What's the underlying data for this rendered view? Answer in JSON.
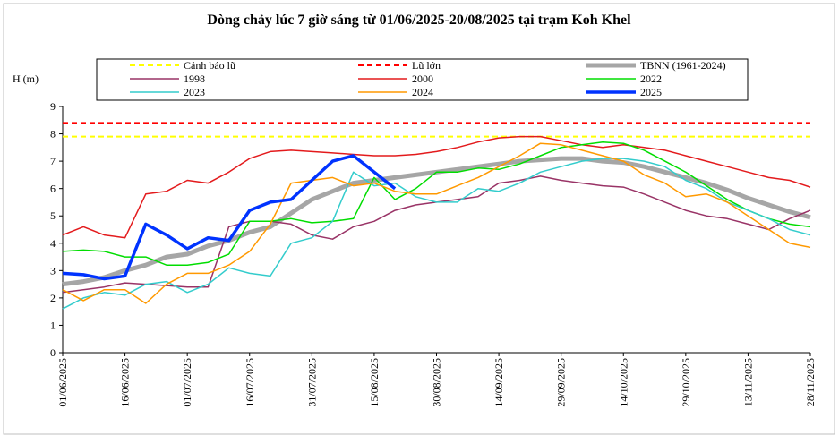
{
  "chart_data": {
    "type": "line",
    "title": "Dòng chảy lúc 7 giờ sáng từ 01/06/2025-20/08/2025 tại trạm Koh Khel",
    "y_label": "H (m)",
    "x": [
      "01/06/2025",
      "06/06/2025",
      "11/06/2025",
      "16/06/2025",
      "21/06/2025",
      "26/06/2025",
      "01/07/2025",
      "06/07/2025",
      "11/07/2025",
      "16/07/2025",
      "21/07/2025",
      "26/07/2025",
      "31/07/2025",
      "05/08/2025",
      "10/08/2025",
      "15/08/2025",
      "20/08/2025",
      "25/08/2025",
      "30/08/2025",
      "04/09/2025",
      "09/09/2025",
      "14/09/2025",
      "19/09/2025",
      "24/09/2025",
      "29/09/2025",
      "04/10/2025",
      "09/10/2025",
      "14/10/2025",
      "19/10/2025",
      "24/10/2025",
      "29/10/2025",
      "03/11/2025",
      "08/11/2025",
      "13/11/2025",
      "18/11/2025",
      "23/11/2025",
      "28/11/2025"
    ],
    "xlim": [
      "01/06/2025",
      "28/11/2025"
    ],
    "xticks": [
      "01/06/2025",
      "16/06/2025",
      "01/07/2025",
      "16/07/2025",
      "31/07/2025",
      "15/08/2025",
      "30/08/2025",
      "14/09/2025",
      "29/09/2025",
      "14/10/2025",
      "29/10/2025",
      "13/11/2025",
      "28/11/2025"
    ],
    "ylim": [
      0,
      9
    ],
    "yticks": [
      0,
      1,
      2,
      3,
      4,
      5,
      6,
      7,
      8,
      9
    ],
    "grid": false,
    "reference_lines": [
      {
        "name": "Cảnh báo lũ",
        "value": 7.9,
        "color": "#ffff00"
      },
      {
        "name": "Lũ lớn",
        "value": 8.4,
        "color": "#ff0000"
      }
    ],
    "series": [
      {
        "name": "TBNN (1961-2024)",
        "color": "#a6a6a6",
        "width": 5,
        "values": [
          2.5,
          2.6,
          2.75,
          3.0,
          3.2,
          3.5,
          3.6,
          3.9,
          4.1,
          4.4,
          4.6,
          5.1,
          5.6,
          5.9,
          6.2,
          6.3,
          6.4,
          6.5,
          6.6,
          6.7,
          6.8,
          6.9,
          7.0,
          7.05,
          7.1,
          7.1,
          7.0,
          6.95,
          6.8,
          6.6,
          6.4,
          6.2,
          5.95,
          5.65,
          5.4,
          5.15,
          4.95
        ]
      },
      {
        "name": "1998",
        "color": "#993366",
        "width": 1.5,
        "values": [
          2.2,
          2.3,
          2.4,
          2.55,
          2.5,
          2.45,
          2.4,
          2.4,
          4.6,
          4.8,
          4.8,
          4.7,
          4.3,
          4.15,
          4.6,
          4.8,
          5.2,
          5.4,
          5.5,
          5.6,
          5.7,
          6.2,
          6.3,
          6.45,
          6.3,
          6.2,
          6.1,
          6.05,
          5.8,
          5.5,
          5.2,
          5.0,
          4.9,
          4.7,
          4.5,
          4.9,
          5.2
        ]
      },
      {
        "name": "2000",
        "color": "#e31a1c",
        "width": 1.5,
        "values": [
          4.3,
          4.6,
          4.3,
          4.2,
          5.8,
          5.9,
          6.3,
          6.2,
          6.6,
          7.1,
          7.35,
          7.4,
          7.35,
          7.3,
          7.25,
          7.2,
          7.2,
          7.25,
          7.35,
          7.5,
          7.7,
          7.85,
          7.9,
          7.9,
          7.75,
          7.6,
          7.5,
          7.6,
          7.5,
          7.4,
          7.2,
          7.0,
          6.8,
          6.6,
          6.4,
          6.3,
          6.05
        ]
      },
      {
        "name": "2022",
        "color": "#00dd00",
        "width": 1.5,
        "values": [
          3.7,
          3.75,
          3.7,
          3.5,
          3.5,
          3.2,
          3.2,
          3.3,
          3.6,
          4.8,
          4.8,
          4.9,
          4.75,
          4.8,
          4.9,
          6.4,
          5.6,
          6.0,
          6.6,
          6.6,
          6.75,
          6.7,
          6.9,
          7.2,
          7.5,
          7.6,
          7.7,
          7.65,
          7.4,
          7.0,
          6.6,
          6.1,
          5.6,
          5.2,
          4.9,
          4.7,
          4.6
        ]
      },
      {
        "name": "2023",
        "color": "#33cccc",
        "width": 1.5,
        "values": [
          1.6,
          2.0,
          2.2,
          2.1,
          2.5,
          2.6,
          2.2,
          2.5,
          3.1,
          2.9,
          2.8,
          4.0,
          4.2,
          4.8,
          6.6,
          6.1,
          6.2,
          5.7,
          5.5,
          5.5,
          6.0,
          5.9,
          6.2,
          6.6,
          6.8,
          7.0,
          7.1,
          7.1,
          7.0,
          6.8,
          6.3,
          6.0,
          5.5,
          5.2,
          4.9,
          4.5,
          4.3
        ]
      },
      {
        "name": "2024",
        "color": "#ff9900",
        "width": 1.5,
        "values": [
          2.3,
          1.9,
          2.3,
          2.3,
          1.8,
          2.5,
          2.9,
          2.9,
          3.2,
          3.7,
          4.7,
          6.2,
          6.3,
          6.4,
          6.1,
          6.2,
          5.9,
          5.8,
          5.8,
          6.1,
          6.4,
          6.8,
          7.2,
          7.65,
          7.6,
          7.4,
          7.2,
          7.0,
          6.5,
          6.2,
          5.7,
          5.8,
          5.5,
          5.0,
          4.5,
          4.0,
          3.85
        ]
      },
      {
        "name": "2025",
        "color": "#0033ff",
        "width": 3.5,
        "values": [
          2.9,
          2.85,
          2.7,
          2.8,
          4.7,
          4.3,
          3.8,
          4.2,
          4.1,
          5.2,
          5.5,
          5.6,
          6.3,
          7.0,
          7.2,
          6.6,
          6.0,
          null,
          null,
          null,
          null,
          null,
          null,
          null,
          null,
          null,
          null,
          null,
          null,
          null,
          null,
          null,
          null,
          null,
          null,
          null,
          null
        ]
      }
    ]
  }
}
